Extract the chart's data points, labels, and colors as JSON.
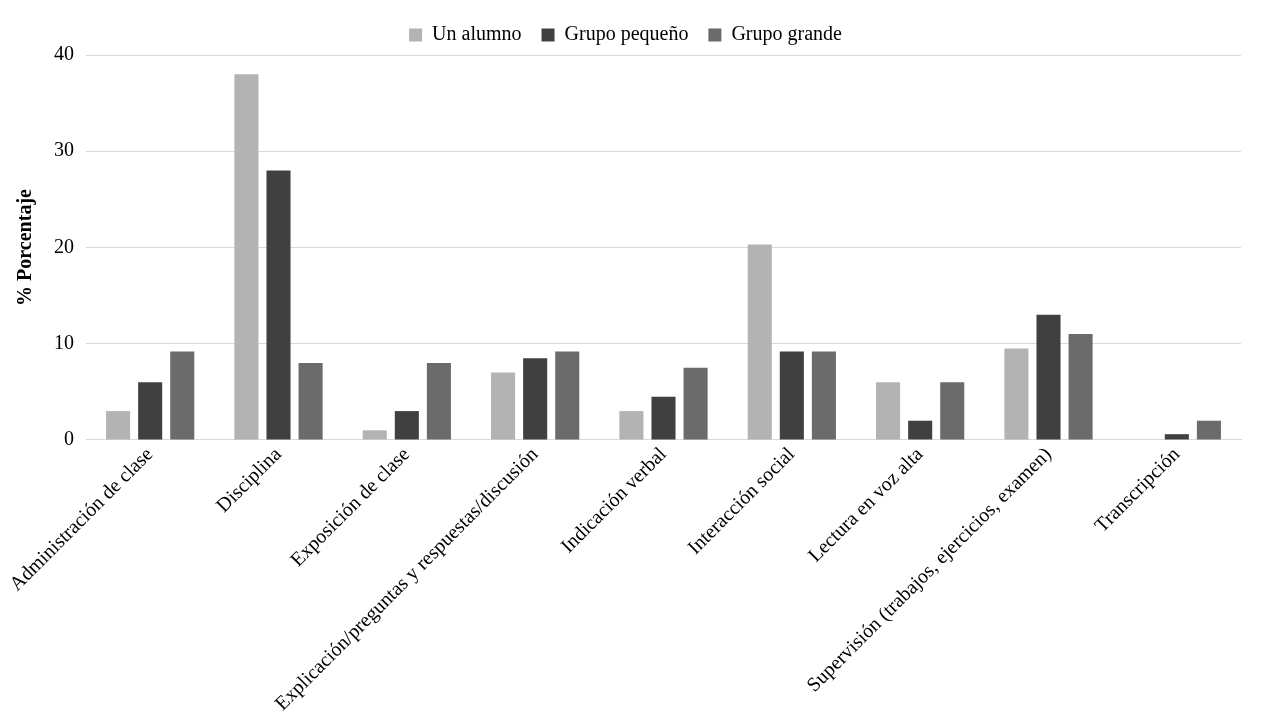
{
  "chart_data": {
    "type": "bar",
    "ylabel": "% Porcentaje",
    "categories": [
      "Administración de clase",
      "Disciplina",
      "Exposición de clase",
      "Explicación/preguntas y respuestas/discusión",
      "Indicación verbal",
      "Interacción social",
      "Lectura en voz alta",
      "Supervisión (trabajos, ejercicios, examen)",
      "Transcripción"
    ],
    "series": [
      {
        "name": "Un alumno",
        "color": "#b3b3b3",
        "values": [
          3,
          38,
          1,
          7,
          3,
          20.3,
          6,
          9.5,
          0
        ]
      },
      {
        "name": "Grupo pequeño",
        "color": "#404040",
        "values": [
          6,
          28,
          3,
          8.5,
          4.5,
          9.2,
          2,
          13,
          0.6
        ]
      },
      {
        "name": "Grupo grande",
        "color": "#6b6b6b",
        "values": [
          9.2,
          8,
          8,
          9.2,
          7.5,
          9.2,
          6,
          11,
          2
        ]
      }
    ],
    "ylim": [
      0,
      40
    ],
    "yticks": [
      0,
      10,
      20,
      30,
      40
    ],
    "grid": "y",
    "legend": "top"
  }
}
